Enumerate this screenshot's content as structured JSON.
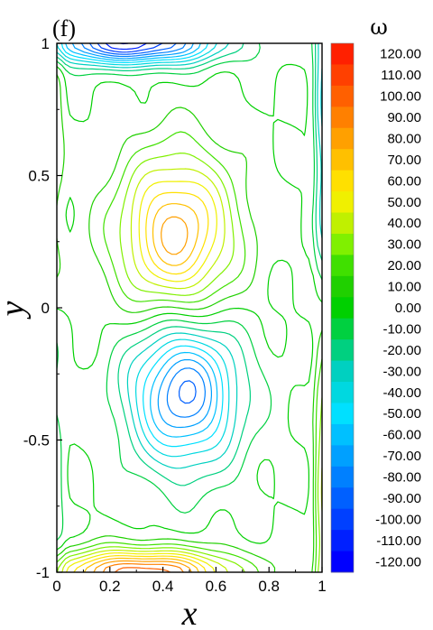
{
  "chart_data": {
    "type": "heatmap",
    "subtype": "contour-lines",
    "panel_label": "(f)",
    "xlabel": "x",
    "ylabel": "y",
    "xlim": [
      0,
      1
    ],
    "ylim": [
      -1,
      1
    ],
    "x_ticks": [
      "0",
      "0.2",
      "0.4",
      "0.6",
      "0.8",
      "1"
    ],
    "x_tick_values": [
      0,
      0.2,
      0.4,
      0.6,
      0.8,
      1
    ],
    "y_ticks": [
      "1",
      "0.5",
      "0",
      "-0.5",
      "-1"
    ],
    "y_tick_values": [
      1,
      0.5,
      0,
      -0.5,
      -1
    ],
    "grid": false,
    "colorbar": {
      "title": "ω",
      "placement": "right",
      "levels": [
        "120.00",
        "110.00",
        "100.00",
        "90.00",
        "80.00",
        "70.00",
        "60.00",
        "50.00",
        "40.00",
        "30.00",
        "20.00",
        "10.00",
        "0.00",
        "-10.00",
        "-20.00",
        "-30.00",
        "-40.00",
        "-50.00",
        "-60.00",
        "-70.00",
        "-80.00",
        "-90.00",
        "-100.00",
        "-110.00",
        "-120.00"
      ],
      "level_values": [
        120,
        110,
        100,
        90,
        80,
        70,
        60,
        50,
        40,
        30,
        20,
        10,
        0,
        -10,
        -20,
        -30,
        -40,
        -50,
        -60,
        -70,
        -80,
        -90,
        -100,
        -110,
        -120
      ],
      "colors": [
        "#ff2000",
        "#ff4000",
        "#ff6000",
        "#ff8000",
        "#ffa000",
        "#ffc000",
        "#ffe000",
        "#f0f000",
        "#c0f000",
        "#80f000",
        "#40e000",
        "#20d000",
        "#00d000",
        "#00d040",
        "#00d080",
        "#00d0c0",
        "#00d8e0",
        "#00e0ff",
        "#00c0ff",
        "#00a0ff",
        "#0080ff",
        "#0060ff",
        "#0040ff",
        "#0020ff",
        "#0000ff"
      ]
    },
    "features": [
      {
        "kind": "vortex",
        "sign": "positive",
        "center": [
          0.45,
          0.28
        ],
        "peak": 80
      },
      {
        "kind": "vortex",
        "sign": "negative",
        "center": [
          0.48,
          -0.32
        ],
        "peak": -90
      },
      {
        "kind": "wall-layer",
        "sign": "negative",
        "center": [
          0.3,
          0.95
        ],
        "peak": -110
      },
      {
        "kind": "wall-layer",
        "sign": "positive",
        "center": [
          0.3,
          -0.95
        ],
        "peak": 100
      }
    ]
  }
}
